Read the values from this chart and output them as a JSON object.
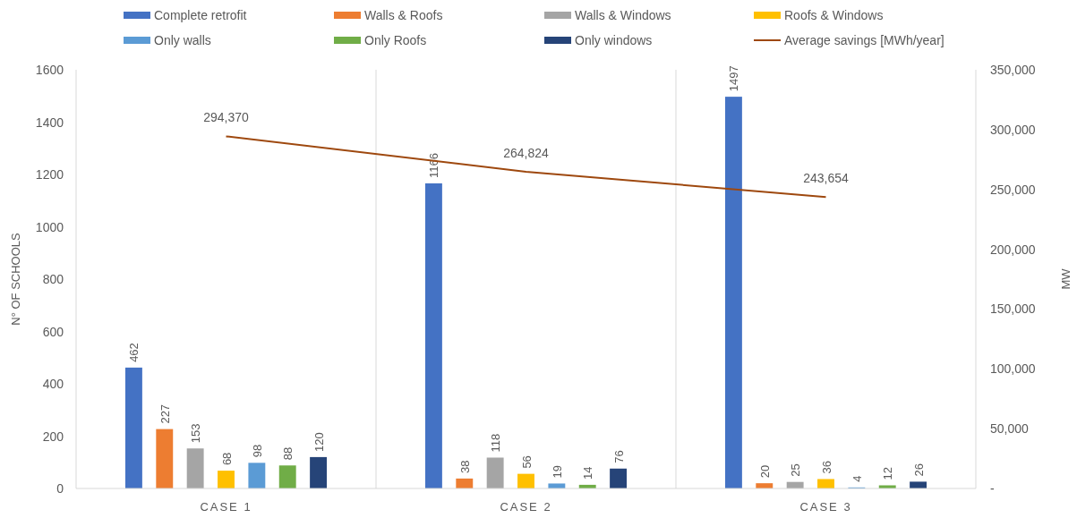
{
  "chart_data": {
    "type": "bar",
    "categories": [
      "CASE 1",
      "CASE 2",
      "CASE 3"
    ],
    "ylabel": "N° OF SCHOOLS",
    "y2label": "MW",
    "ylim": [
      0,
      1600
    ],
    "yticks": [
      0,
      200,
      400,
      600,
      800,
      1000,
      1200,
      1400,
      1600
    ],
    "y2lim": [
      0,
      350000
    ],
    "y2ticks": [
      {
        "value": 0,
        "label": "-"
      },
      {
        "value": 50000,
        "label": "50,000"
      },
      {
        "value": 100000,
        "label": "100,000"
      },
      {
        "value": 150000,
        "label": "150,000"
      },
      {
        "value": 200000,
        "label": "200,000"
      },
      {
        "value": 250000,
        "label": "250,000"
      },
      {
        "value": 300000,
        "label": "300,000"
      },
      {
        "value": 350000,
        "label": "350,000"
      }
    ],
    "grid": "x",
    "legend": "top",
    "data_labels": true,
    "series": [
      {
        "name": "Complete retrofit",
        "color": "#4472c4",
        "values": [
          462,
          1166,
          1497
        ]
      },
      {
        "name": "Walls & Roofs",
        "color": "#ed7d31",
        "values": [
          227,
          38,
          20
        ]
      },
      {
        "name": "Walls & Windows",
        "color": "#a5a5a5",
        "values": [
          153,
          118,
          25
        ]
      },
      {
        "name": "Roofs & Windows",
        "color": "#ffc000",
        "values": [
          68,
          56,
          36
        ]
      },
      {
        "name": "Only walls",
        "color": "#5b9bd5",
        "values": [
          98,
          19,
          4
        ]
      },
      {
        "name": "Only Roofs",
        "color": "#70ad47",
        "values": [
          88,
          14,
          12
        ]
      },
      {
        "name": "Only windows",
        "color": "#264478",
        "values": [
          120,
          76,
          26
        ]
      },
      {
        "name": "Average savings [MWh/year]",
        "type": "line",
        "axis": "y2",
        "color": "#9e480e",
        "values": [
          294370,
          264824,
          243654
        ],
        "value_labels": [
          "294,370",
          "264,824",
          "243,654"
        ]
      }
    ]
  }
}
